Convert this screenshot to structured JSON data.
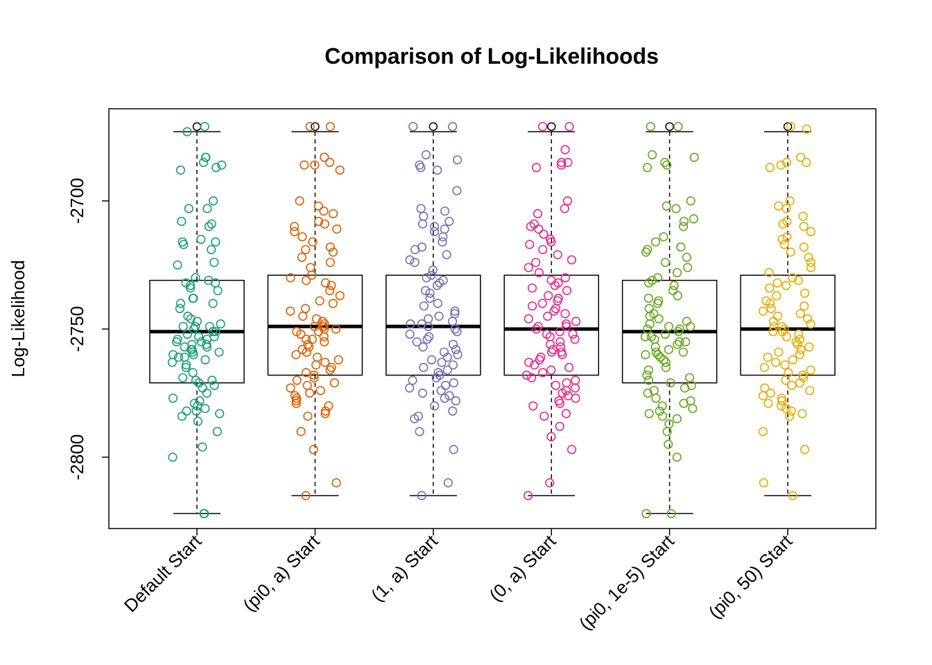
{
  "chart_data": {
    "type": "boxplot",
    "title": "Comparison of Log-Likelihoods",
    "xlabel": "",
    "ylabel": "Log-Likelihood",
    "ylim": [
      -2825,
      -2665
    ],
    "yticks": [
      -2800,
      -2750,
      -2700
    ],
    "ytick_labels": [
      "-2800",
      "-2750",
      "-2700"
    ],
    "categories": [
      "Default Start",
      "(pi0, a) Start",
      "(1, a) Start",
      "(0, a) Start",
      "(pi0, 1e-5) Start",
      "(pi0, 50) Start"
    ],
    "colors": [
      "#1b9e77",
      "#d95f02",
      "#7570b3",
      "#e7298a",
      "#66a61e",
      "#e6ab02"
    ],
    "boxes": [
      {
        "q1": -2771,
        "median": -2751,
        "q3": -2731,
        "whisker_low": -2822,
        "whisker_high": -2673,
        "outliers": [
          -2671
        ]
      },
      {
        "q1": -2768,
        "median": -2749,
        "q3": -2729,
        "whisker_low": -2815,
        "whisker_high": -2673,
        "outliers": [
          -2671
        ]
      },
      {
        "q1": -2768,
        "median": -2749,
        "q3": -2729,
        "whisker_low": -2815,
        "whisker_high": -2673,
        "outliers": [
          -2671
        ]
      },
      {
        "q1": -2768,
        "median": -2750,
        "q3": -2729,
        "whisker_low": -2815,
        "whisker_high": -2673,
        "outliers": [
          -2671
        ]
      },
      {
        "q1": -2771,
        "median": -2751,
        "q3": -2731,
        "whisker_low": -2822,
        "whisker_high": -2673,
        "outliers": [
          -2671
        ]
      },
      {
        "q1": -2768,
        "median": -2750,
        "q3": -2729,
        "whisker_low": -2815,
        "whisker_high": -2673,
        "outliers": [
          -2671
        ]
      }
    ],
    "jitter_points": [
      [
        -2671,
        -2673,
        -2685,
        -2686,
        -2683,
        -2683,
        -2688,
        -2687,
        -2703,
        -2700,
        -2710,
        -2703,
        -2709,
        -2708,
        -2715,
        -2717,
        -2716,
        -2719,
        -2716,
        -2724,
        -2725,
        -2730,
        -2731,
        -2733,
        -2732,
        -2734,
        -2735,
        -2732,
        -2738,
        -2738,
        -2740,
        -2740,
        -2742,
        -2745,
        -2746,
        -2747,
        -2748,
        -2749,
        -2749,
        -2749,
        -2750,
        -2751,
        -2751,
        -2752,
        -2753,
        -2753,
        -2754,
        -2754,
        -2755,
        -2755,
        -2756,
        -2756,
        -2757,
        -2757,
        -2758,
        -2758,
        -2759,
        -2759,
        -2760,
        -2760,
        -2761,
        -2761,
        -2762,
        -2763,
        -2764,
        -2765,
        -2767,
        -2769,
        -2770,
        -2770,
        -2771,
        -2772,
        -2773,
        -2775,
        -2777,
        -2778,
        -2779,
        -2780,
        -2781,
        -2782,
        -2782,
        -2783,
        -2784,
        -2786,
        -2790,
        -2796,
        -2800,
        -2822,
        -2822
      ],
      [
        -2671,
        -2671,
        -2683,
        -2686,
        -2685,
        -2688,
        -2686,
        -2700,
        -2702,
        -2704,
        -2705,
        -2708,
        -2709,
        -2710,
        -2711,
        -2712,
        -2714,
        -2716,
        -2718,
        -2719,
        -2720,
        -2722,
        -2724,
        -2726,
        -2729,
        -2730,
        -2731,
        -2732,
        -2733,
        -2735,
        -2737,
        -2739,
        -2740,
        -2742,
        -2743,
        -2745,
        -2746,
        -2747,
        -2748,
        -2749,
        -2749,
        -2749,
        -2750,
        -2750,
        -2751,
        -2751,
        -2752,
        -2753,
        -2754,
        -2754,
        -2755,
        -2756,
        -2757,
        -2758,
        -2759,
        -2760,
        -2761,
        -2762,
        -2763,
        -2764,
        -2765,
        -2766,
        -2767,
        -2768,
        -2769,
        -2770,
        -2771,
        -2772,
        -2773,
        -2774,
        -2775,
        -2776,
        -2777,
        -2778,
        -2779,
        -2780,
        -2782,
        -2783,
        -2784,
        -2790,
        -2797,
        -2810,
        -2815
      ],
      [
        -2671,
        -2671,
        -2682,
        -2684,
        -2686,
        -2687,
        -2688,
        -2696,
        -2703,
        -2704,
        -2706,
        -2708,
        -2709,
        -2710,
        -2711,
        -2712,
        -2714,
        -2716,
        -2718,
        -2719,
        -2721,
        -2723,
        -2724,
        -2727,
        -2729,
        -2730,
        -2731,
        -2732,
        -2733,
        -2735,
        -2736,
        -2738,
        -2740,
        -2741,
        -2743,
        -2744,
        -2745,
        -2746,
        -2747,
        -2748,
        -2748,
        -2749,
        -2749,
        -2750,
        -2751,
        -2752,
        -2753,
        -2754,
        -2755,
        -2756,
        -2757,
        -2758,
        -2759,
        -2760,
        -2761,
        -2762,
        -2763,
        -2764,
        -2765,
        -2766,
        -2767,
        -2768,
        -2769,
        -2770,
        -2771,
        -2772,
        -2773,
        -2774,
        -2775,
        -2776,
        -2777,
        -2778,
        -2780,
        -2782,
        -2784,
        -2785,
        -2790,
        -2797,
        -2810,
        -2815
      ],
      [
        -2671,
        -2671,
        -2680,
        -2686,
        -2685,
        -2687,
        -2685,
        -2700,
        -2703,
        -2705,
        -2709,
        -2710,
        -2711,
        -2713,
        -2715,
        -2716,
        -2717,
        -2719,
        -2721,
        -2723,
        -2724,
        -2726,
        -2728,
        -2730,
        -2731,
        -2732,
        -2733,
        -2734,
        -2735,
        -2737,
        -2738,
        -2739,
        -2740,
        -2741,
        -2742,
        -2743,
        -2744,
        -2745,
        -2746,
        -2747,
        -2748,
        -2749,
        -2749,
        -2750,
        -2751,
        -2752,
        -2752,
        -2753,
        -2754,
        -2755,
        -2756,
        -2757,
        -2758,
        -2759,
        -2759,
        -2760,
        -2761,
        -2762,
        -2763,
        -2764,
        -2765,
        -2766,
        -2767,
        -2768,
        -2769,
        -2770,
        -2771,
        -2772,
        -2773,
        -2774,
        -2775,
        -2776,
        -2777,
        -2778,
        -2779,
        -2780,
        -2783,
        -2784,
        -2788,
        -2792,
        -2797,
        -2810,
        -2815
      ],
      [
        -2671,
        -2671,
        -2682,
        -2683,
        -2685,
        -2686,
        -2687,
        -2700,
        -2702,
        -2703,
        -2707,
        -2708,
        -2710,
        -2714,
        -2716,
        -2718,
        -2719,
        -2720,
        -2722,
        -2724,
        -2726,
        -2728,
        -2730,
        -2731,
        -2732,
        -2733,
        -2735,
        -2737,
        -2738,
        -2739,
        -2740,
        -2742,
        -2744,
        -2745,
        -2746,
        -2747,
        -2748,
        -2749,
        -2749,
        -2750,
        -2750,
        -2751,
        -2752,
        -2753,
        -2753,
        -2754,
        -2755,
        -2755,
        -2756,
        -2757,
        -2758,
        -2759,
        -2759,
        -2760,
        -2760,
        -2761,
        -2762,
        -2763,
        -2765,
        -2766,
        -2768,
        -2769,
        -2770,
        -2771,
        -2772,
        -2773,
        -2774,
        -2775,
        -2777,
        -2778,
        -2779,
        -2780,
        -2781,
        -2782,
        -2783,
        -2784,
        -2785,
        -2787,
        -2790,
        -2795,
        -2800,
        -2822,
        -2822
      ],
      [
        -2671,
        -2672,
        -2683,
        -2685,
        -2686,
        -2685,
        -2687,
        -2700,
        -2702,
        -2703,
        -2706,
        -2708,
        -2709,
        -2710,
        -2712,
        -2714,
        -2715,
        -2717,
        -2718,
        -2720,
        -2722,
        -2724,
        -2726,
        -2728,
        -2730,
        -2731,
        -2732,
        -2733,
        -2734,
        -2736,
        -2737,
        -2739,
        -2740,
        -2741,
        -2742,
        -2743,
        -2744,
        -2745,
        -2746,
        -2747,
        -2748,
        -2749,
        -2749,
        -2750,
        -2751,
        -2751,
        -2752,
        -2753,
        -2754,
        -2755,
        -2756,
        -2757,
        -2758,
        -2759,
        -2760,
        -2761,
        -2762,
        -2763,
        -2764,
        -2765,
        -2766,
        -2767,
        -2768,
        -2769,
        -2770,
        -2771,
        -2772,
        -2773,
        -2774,
        -2775,
        -2776,
        -2777,
        -2778,
        -2779,
        -2780,
        -2781,
        -2782,
        -2783,
        -2784,
        -2790,
        -2797,
        -2810,
        -2815
      ]
    ],
    "grid": false,
    "legend": "none"
  }
}
